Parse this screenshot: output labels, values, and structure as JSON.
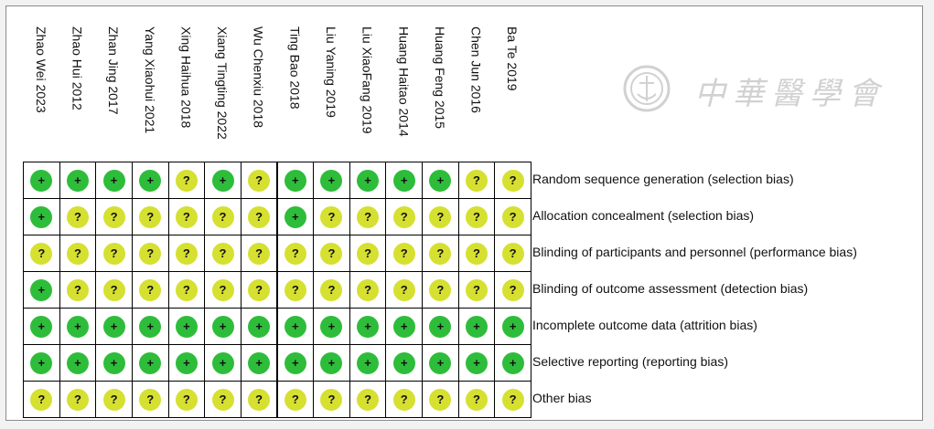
{
  "chart_data": {
    "type": "table",
    "columns": [
      "Zhao Wei 2023",
      "Zhao Hui 2012",
      "Zhan Jing 2017",
      "Yang Xiaohui 2021",
      "Xing Haihua 2018",
      "Xiang Tingting 2022",
      "Wu Chenxiu 2018",
      "Ting Bao 2018",
      "Liu Yaning 2019",
      "Liu XiaoFang 2019",
      "Huang Haitao 2014",
      "Huang Feng 2015",
      "Chen Jun 2016",
      "Ba Te 2019"
    ],
    "rows": [
      "Random sequence generation (selection bias)",
      "Allocation concealment (selection bias)",
      "Blinding of participants and personnel (performance bias)",
      "Blinding of outcome assessment (detection bias)",
      "Incomplete outcome data (attrition bias)",
      "Selective reporting (reporting bias)",
      "Other bias"
    ],
    "ratings": [
      [
        "+",
        "+",
        "+",
        "+",
        "?",
        "+",
        "?",
        "+",
        "+",
        "+",
        "+",
        "+",
        "?",
        "?"
      ],
      [
        "+",
        "?",
        "?",
        "?",
        "?",
        "?",
        "?",
        "+",
        "?",
        "?",
        "?",
        "?",
        "?",
        "?"
      ],
      [
        "?",
        "?",
        "?",
        "?",
        "?",
        "?",
        "?",
        "?",
        "?",
        "?",
        "?",
        "?",
        "?",
        "?"
      ],
      [
        "+",
        "?",
        "?",
        "?",
        "?",
        "?",
        "?",
        "?",
        "?",
        "?",
        "?",
        "?",
        "?",
        "?"
      ],
      [
        "+",
        "+",
        "+",
        "+",
        "+",
        "+",
        "+",
        "+",
        "+",
        "+",
        "+",
        "+",
        "+",
        "+"
      ],
      [
        "+",
        "+",
        "+",
        "+",
        "+",
        "+",
        "+",
        "+",
        "+",
        "+",
        "+",
        "+",
        "+",
        "+"
      ],
      [
        "?",
        "?",
        "?",
        "?",
        "?",
        "?",
        "?",
        "?",
        "?",
        "?",
        "?",
        "?",
        "?",
        "?"
      ]
    ],
    "symbols": {
      "low": "+",
      "unclear": "?"
    },
    "colors": {
      "low": "#2ebd3a",
      "unclear": "#d6e030",
      "border": "#000000"
    }
  },
  "watermark": {
    "text": "中華醫學會",
    "icon": "society-seal-icon"
  }
}
